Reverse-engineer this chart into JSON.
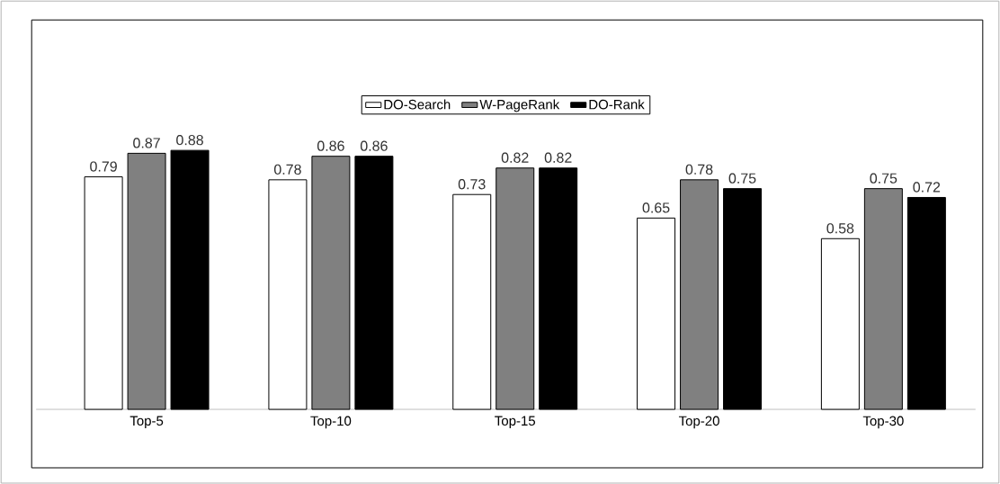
{
  "chart_data": {
    "type": "bar",
    "categories": [
      "Top-5",
      "Top-10",
      "Top-15",
      "Top-20",
      "Top-30"
    ],
    "series": [
      {
        "name": "DO-Search",
        "color": "#ffffff",
        "values": [
          0.79,
          0.78,
          0.73,
          0.65,
          0.58
        ]
      },
      {
        "name": "W-PageRank",
        "color": "#808080",
        "values": [
          0.87,
          0.86,
          0.82,
          0.78,
          0.75
        ]
      },
      {
        "name": "DO-Rank",
        "color": "#000000",
        "values": [
          0.88,
          0.86,
          0.82,
          0.75,
          0.72
        ]
      }
    ],
    "data_labels": true,
    "legend": "top",
    "grid": false,
    "tick_labels": "x"
  }
}
